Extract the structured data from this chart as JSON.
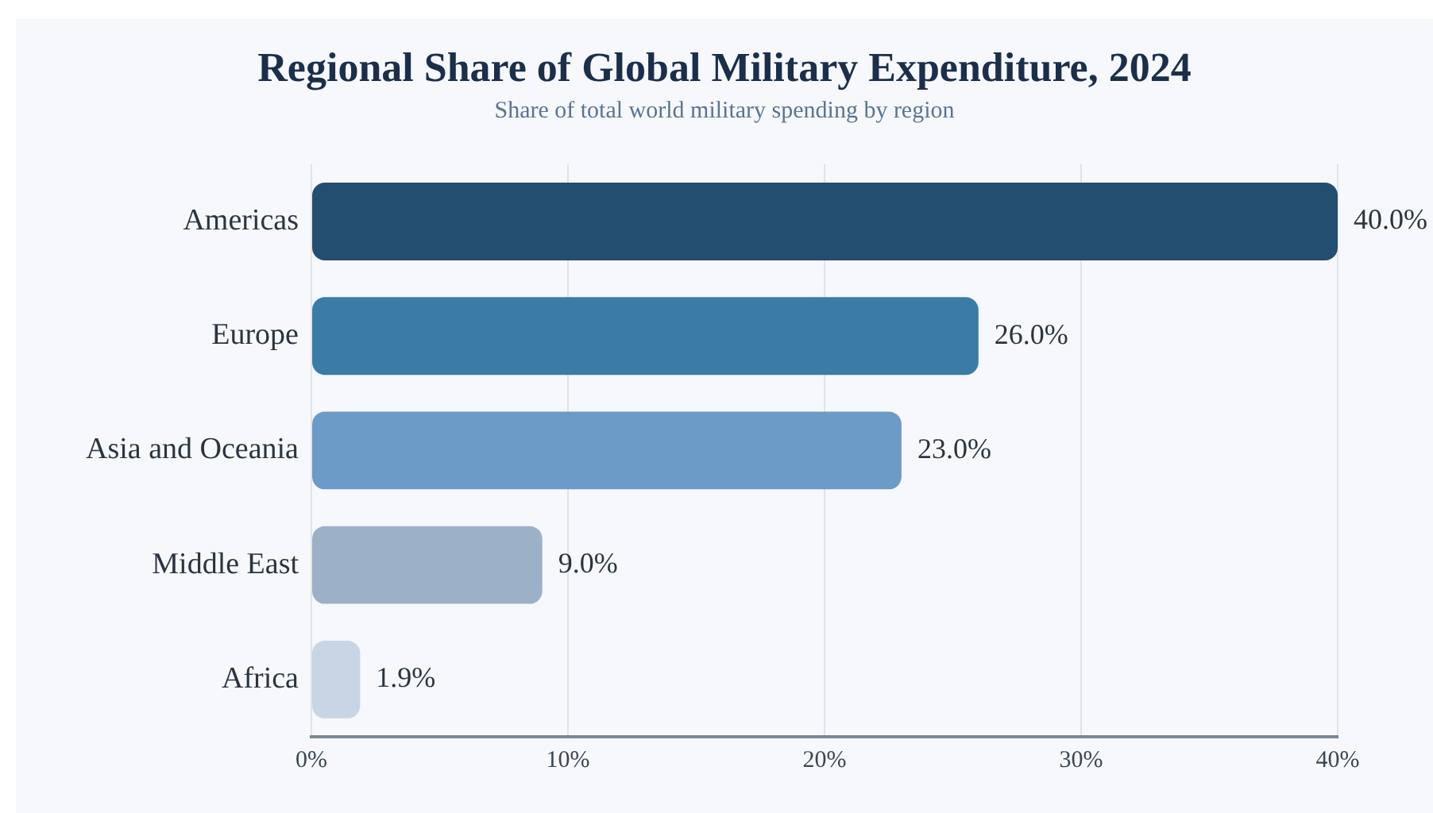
{
  "chart_data": {
    "type": "bar",
    "orientation": "horizontal",
    "title": "Regional Share of Global Military Expenditure, 2024",
    "subtitle": "Share of total world military spending by region",
    "categories": [
      "Americas",
      "Europe",
      "Asia and Oceania",
      "Middle East",
      "Africa"
    ],
    "values": [
      40,
      26,
      23,
      9,
      1.9
    ],
    "colors": [
      "#234e70",
      "#3a7ca5",
      "#6b9bc6",
      "#9cb0c8",
      "#c7d5e5"
    ],
    "value_labels": [
      "40.0%",
      "26.0%",
      "23.0%",
      "9.0%",
      "1.9%"
    ],
    "xlim": [
      0,
      40
    ],
    "xticks": [
      {
        "value": 0,
        "label": "0%"
      },
      {
        "value": 10,
        "label": "10%"
      },
      {
        "value": 20,
        "label": "20%"
      },
      {
        "value": 30,
        "label": "30%"
      },
      {
        "value": 40,
        "label": "40%"
      }
    ],
    "grid": "x",
    "legend": false
  }
}
